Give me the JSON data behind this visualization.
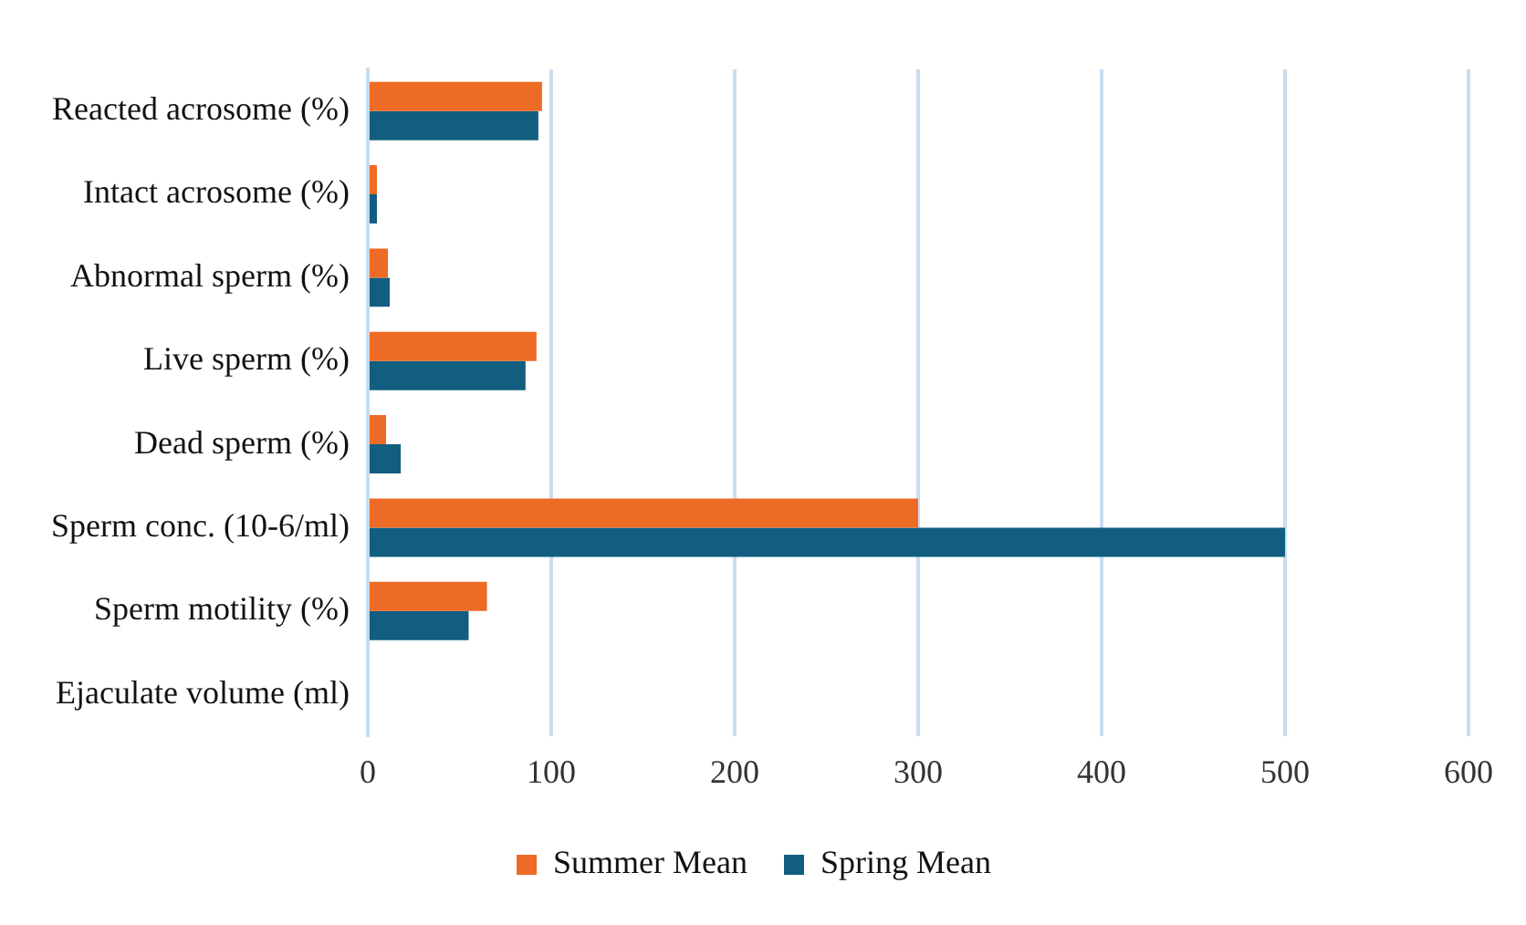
{
  "chart_data": {
    "type": "bar",
    "orientation": "horizontal",
    "categories": [
      "Reacted acrosome (%)",
      "Intact acrosome (%)",
      "Abnormal sperm (%)",
      "Live sperm (%)",
      "Dead sperm (%)",
      "Sperm conc. (10-6/ml)",
      "Sperm motility (%)",
      "Ejaculate volume (ml)"
    ],
    "series": [
      {
        "name": "Summer Mean",
        "color": "#ed6b25",
        "values": [
          95,
          5,
          11,
          92,
          10,
          300,
          65,
          null
        ]
      },
      {
        "name": "Spring Mean",
        "color": "#115e80",
        "values": [
          93,
          5,
          12,
          86,
          18,
          500,
          55,
          null
        ]
      }
    ],
    "xlim": [
      0,
      600
    ],
    "xticks": [
      0,
      100,
      200,
      300,
      400,
      500,
      600
    ],
    "grid": "x",
    "legend": "bottom"
  }
}
